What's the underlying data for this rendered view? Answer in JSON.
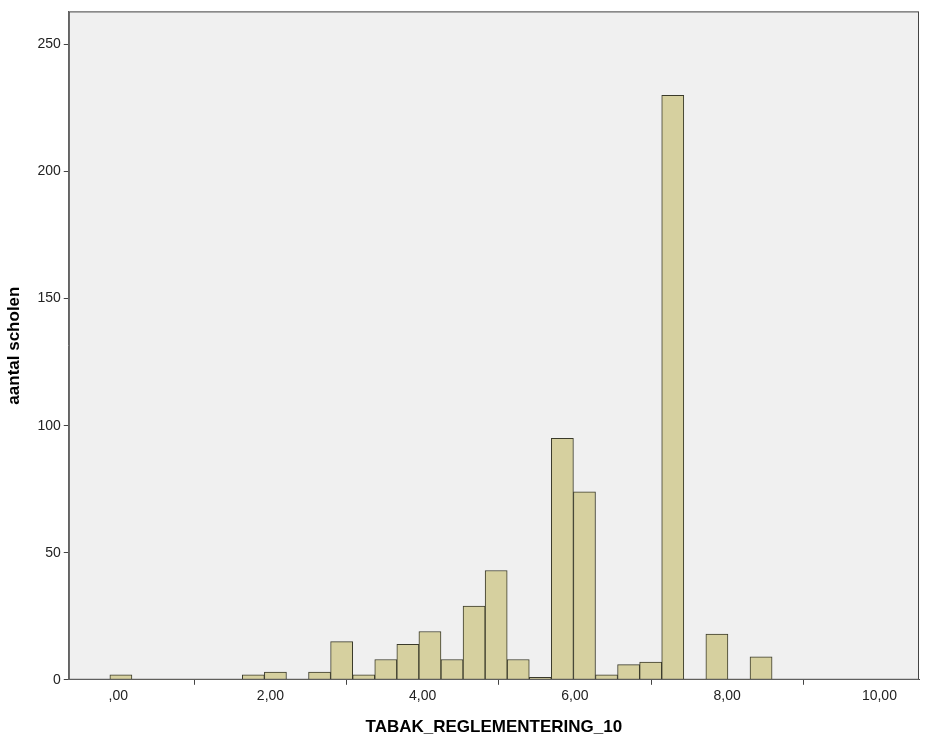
{
  "chart_data": {
    "type": "histogram",
    "x_label": "TABAK_REGLEMENTERING_10",
    "y_label": "aantal scholen",
    "bins": [
      -0.11,
      0.18,
      0.47,
      0.76,
      1.05,
      1.34,
      1.63,
      1.92,
      2.21,
      2.5,
      2.79,
      3.08,
      3.37,
      3.66,
      3.95,
      4.24,
      4.53,
      4.82,
      5.11,
      5.4,
      5.69,
      5.98,
      6.27,
      6.56,
      6.85,
      7.14,
      7.43,
      7.72,
      8.01,
      8.3,
      8.59
    ],
    "values": [
      2,
      0,
      0,
      0,
      0,
      0,
      2,
      3,
      0,
      3,
      15,
      2,
      8,
      14,
      19,
      8,
      29,
      43,
      8,
      1,
      95,
      74,
      2,
      6,
      7,
      230,
      0,
      18,
      0,
      9
    ],
    "color": "#d6d09f",
    "xlim": [
      -0.65,
      10.52
    ],
    "xticks": [
      {
        "value": 0,
        "label": ",00"
      },
      {
        "value": 2,
        "label": "2,00"
      },
      {
        "value": 4,
        "label": "4,00"
      },
      {
        "value": 6,
        "label": "6,00"
      },
      {
        "value": 8,
        "label": "8,00"
      },
      {
        "value": 10,
        "label": "10,00"
      }
    ],
    "ylim": [
      0,
      263
    ],
    "yticks": [
      0,
      50,
      100,
      150,
      200,
      250
    ],
    "grid": false
  }
}
